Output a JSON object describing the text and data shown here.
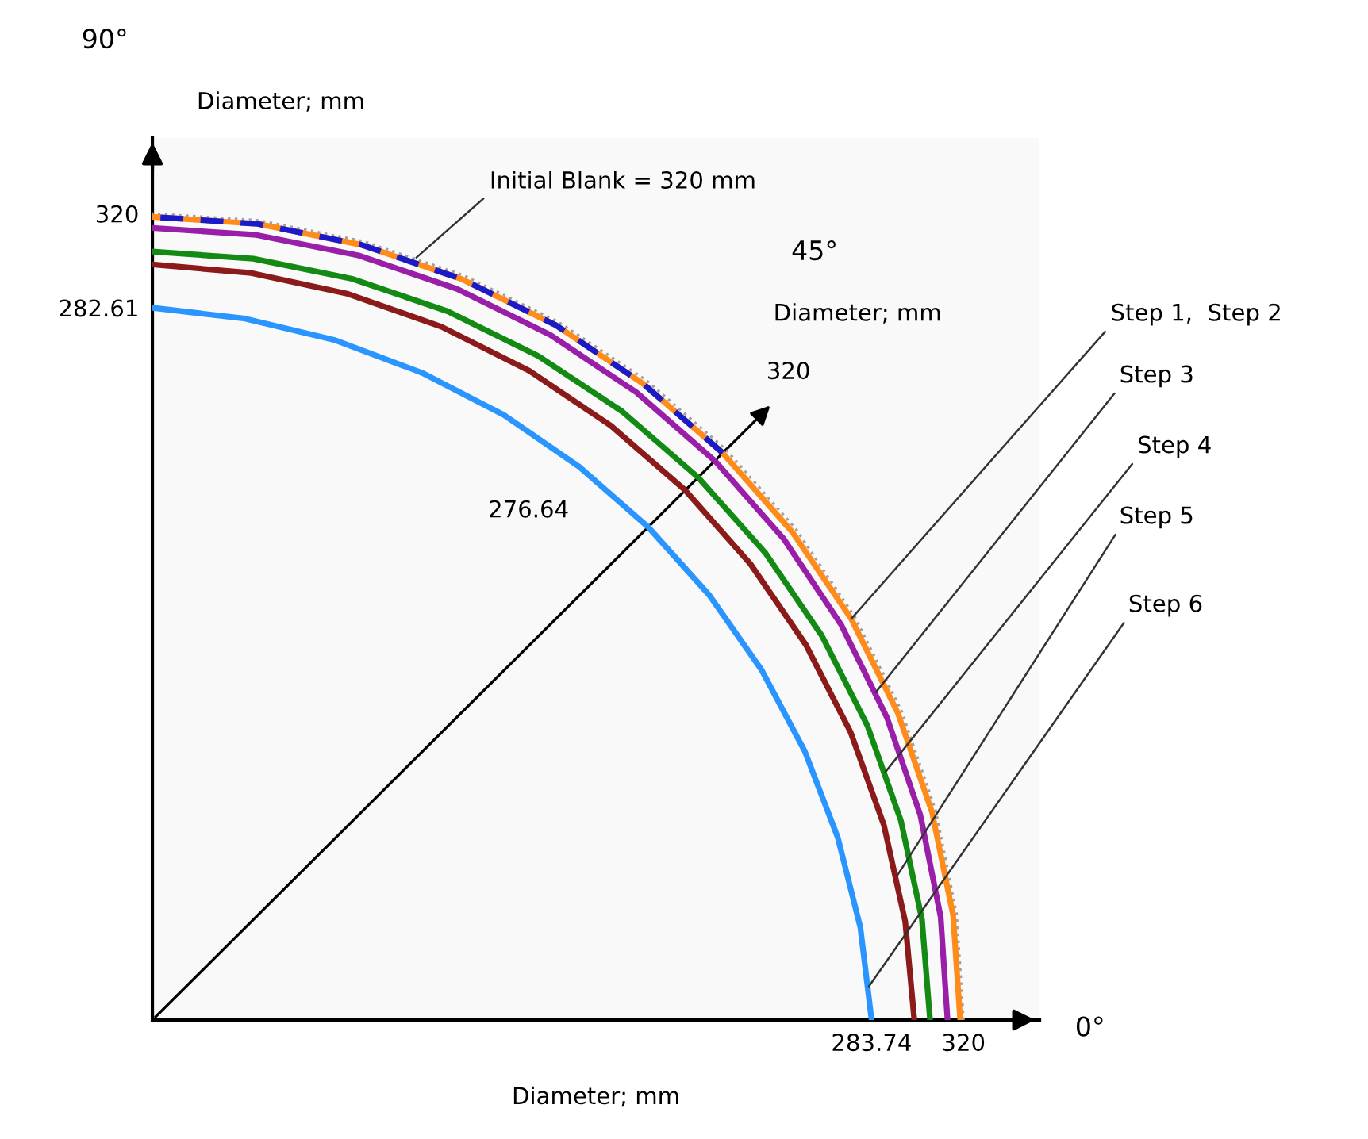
{
  "chart_data": {
    "type": "line",
    "xlabel": "Diameter; mm",
    "ylabel": "Diameter; mm",
    "xlim": [
      0,
      350
    ],
    "ylim": [
      0,
      350
    ],
    "xticks": [
      283.74,
      320
    ],
    "yticks": [
      282.61,
      320
    ],
    "series": [
      {
        "name": "Initial Blank = 320 mm",
        "color": "#a0a0a0",
        "line_style": "dotted",
        "x": [
          320,
          317.3,
          309.1,
          295.6,
          277.1,
          253.9,
          226.3,
          194.8,
          160.0,
          122.5,
          82.8,
          41.8,
          0
        ],
        "values": [
          0,
          41.8,
          82.8,
          122.5,
          160.0,
          194.8,
          226.3,
          253.9,
          277.1,
          295.6,
          309.1,
          317.3,
          320
        ]
      },
      {
        "name": "Step 1,  Step 2",
        "color": "#ff8c1a",
        "line_style": "solid",
        "x": [
          318.7,
          315.9,
          307.6,
          294.1,
          275.7,
          252.4,
          225.0,
          193.7,
          159.2,
          121.8,
          82.4,
          41.6,
          0
        ],
        "values": [
          0,
          41.6,
          82.4,
          121.8,
          159.2,
          193.7,
          225.0,
          252.4,
          275.7,
          294.1,
          307.6,
          315.9,
          318.7
        ]
      },
      {
        "color": "#1a1ac8",
        "line_style": "dashed",
        "x": [
          225.0,
          193.7,
          159.2,
          121.8,
          82.4,
          41.6,
          0
        ],
        "values": [
          225.0,
          252.4,
          275.7,
          294.1,
          307.6,
          315.9,
          318.7
        ]
      },
      {
        "name": "Step 3",
        "color": "#9a1fa8",
        "line_style": "solid",
        "x": [
          313.7,
          311.0,
          303.0,
          289.8,
          271.7,
          249.0,
          221.9,
          191.0,
          157.0,
          120.2,
          81.3,
          41.0,
          0
        ],
        "values": [
          0,
          40.9,
          81.2,
          120.0,
          156.9,
          191.0,
          221.9,
          249.0,
          271.8,
          290.1,
          303.4,
          311.5,
          314.3
        ]
      },
      {
        "name": "Step 4",
        "color": "#138a13",
        "line_style": "solid",
        "x": [
          306.8,
          303.6,
          295.3,
          282.1,
          264.1,
          241.7,
          215.3,
          185.3,
          152.2,
          116.5,
          78.8,
          39.8,
          0
        ],
        "values": [
          0,
          40.0,
          79.1,
          116.8,
          152.5,
          185.5,
          215.3,
          241.5,
          263.5,
          281.2,
          294.1,
          302.1,
          304.9
        ]
      },
      {
        "name": "Step 5",
        "color": "#8b1a1a",
        "line_style": "solid",
        "x": [
          300.6,
          297.0,
          288.6,
          275.5,
          257.8,
          235.9,
          210.2,
          180.9,
          148.7,
          114.0,
          77.2,
          39.0,
          0
        ],
        "values": [
          0,
          39.1,
          77.3,
          114.1,
          148.9,
          181.0,
          210.2,
          235.8,
          257.6,
          275.1,
          288.1,
          296.4,
          299.8
        ]
      },
      {
        "name": "Step 6",
        "color": "#2b95ff",
        "line_style": "solid",
        "x": [
          283.74,
          279.3,
          270.4,
          257.4,
          240.4,
          219.7,
          195.6,
          168.4,
          138.6,
          106.4,
          72.3,
          36.6,
          0
        ],
        "values": [
          0,
          36.8,
          72.4,
          106.6,
          138.8,
          168.6,
          195.6,
          219.5,
          240.1,
          256.8,
          269.7,
          278.3,
          282.61
        ]
      }
    ],
    "annotations": [
      "90°",
      "0°",
      "45°",
      "Diameter; mm",
      "320",
      "276.64"
    ]
  }
}
